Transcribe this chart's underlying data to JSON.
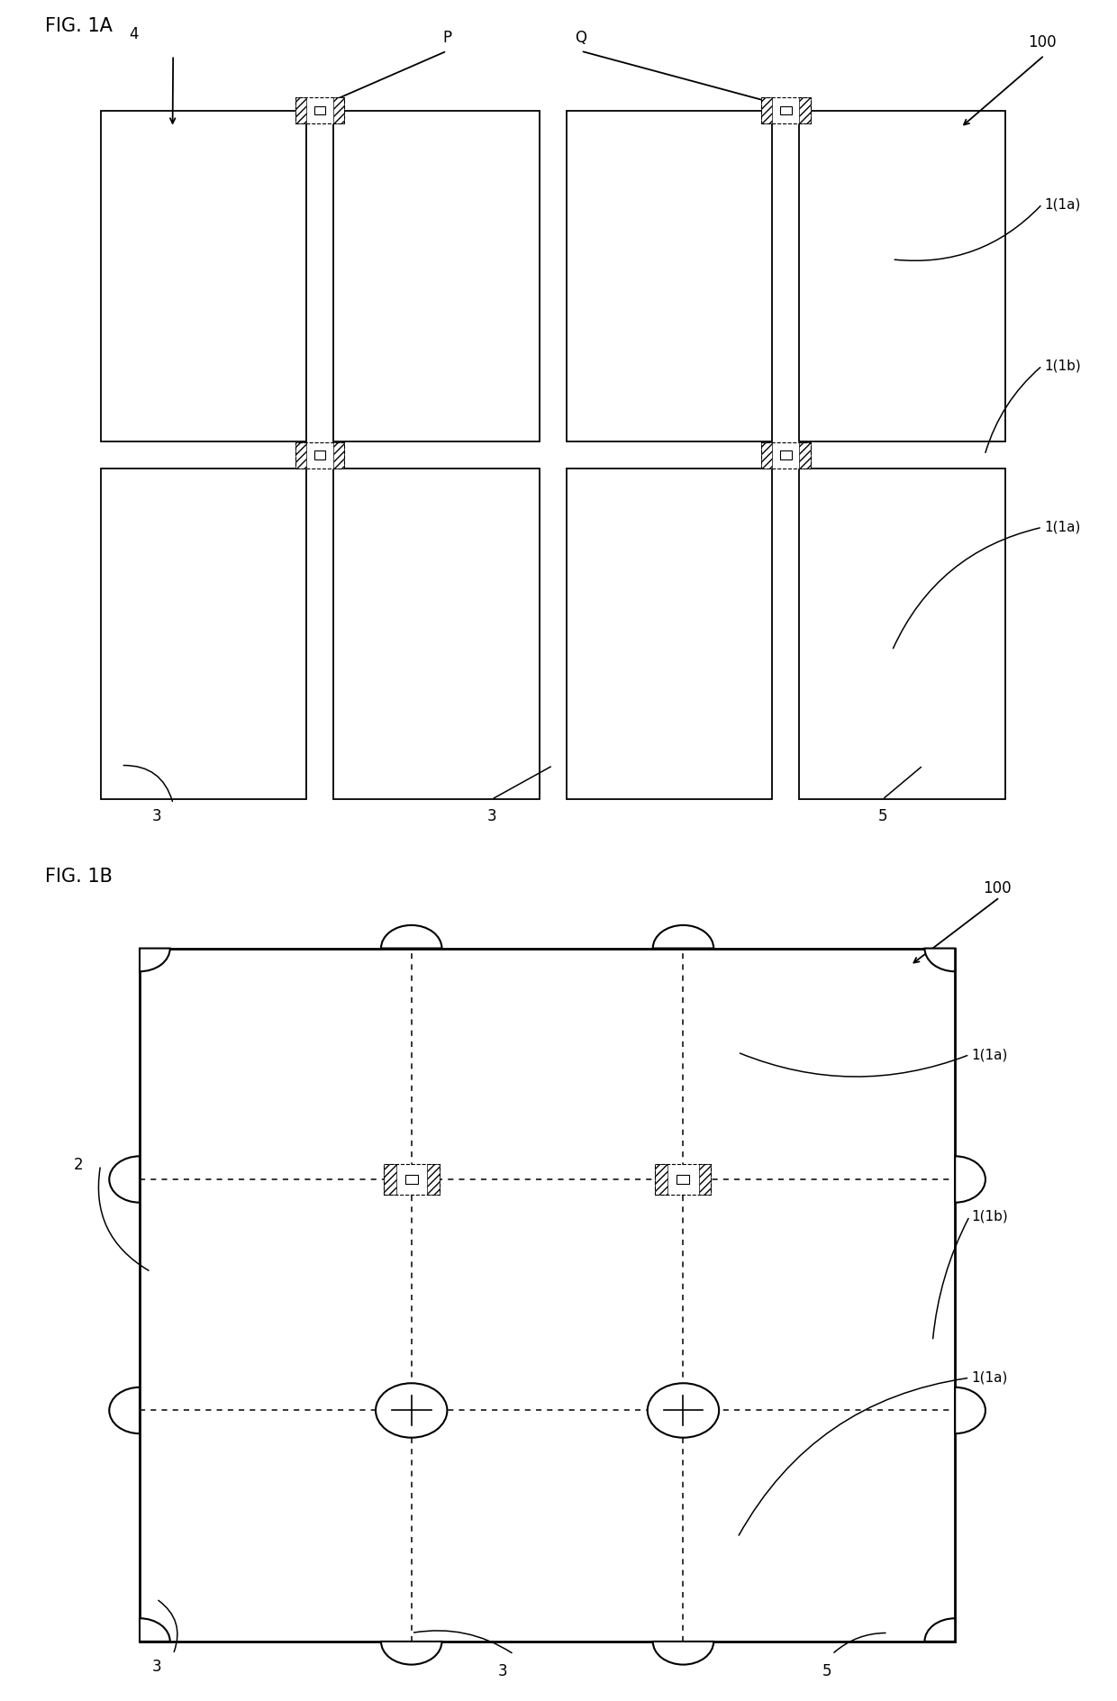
{
  "fig_width": 12.4,
  "fig_height": 18.88,
  "bg_color": "#ffffff",
  "fig1a_label": "FIG. 1A",
  "fig1b_label": "FIG. 1B",
  "label_100_1": "100",
  "label_100_2": "100",
  "label_4": "4",
  "label_P": "P",
  "label_Q": "Q",
  "label_1a_1": "1(1a)",
  "label_1b_1": "1(1b)",
  "label_1a_2": "1(1a)",
  "label_3_1": "3",
  "label_3_2": "3",
  "label_5_1": "5",
  "label_2": "2",
  "label_1a_3": "1(1a)",
  "label_1b_2": "1(1b)",
  "label_1a_4": "1(1a)",
  "label_3_3": "3",
  "label_3_4": "3",
  "label_5_2": "5"
}
